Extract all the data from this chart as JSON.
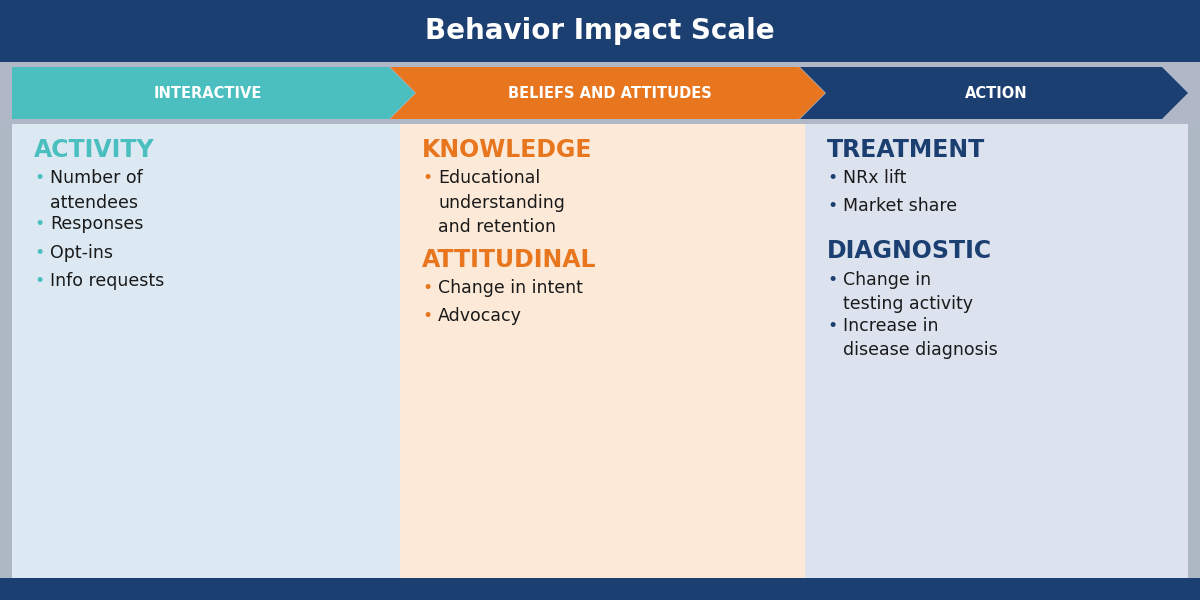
{
  "title": "Behavior Impact Scale",
  "title_color": "#ffffff",
  "title_bg_color": "#1c3f72",
  "header_bg_color": "#b0b8c8",
  "arrows": [
    {
      "label": "INTERACTIVE",
      "color": "#4bbfbf",
      "text_color": "#ffffff"
    },
    {
      "label": "BELIEFS AND ATTITUDES",
      "color": "#e8761e",
      "text_color": "#ffffff"
    },
    {
      "label": "ACTION",
      "color": "#1c3f72",
      "text_color": "#ffffff"
    }
  ],
  "columns": [
    {
      "bg_color": "#dce9f2",
      "heading": "ACTIVITY",
      "heading_color": "#4bbfbf",
      "bullet_color": "#4bbfbf",
      "items": [
        "Number of\nattendees",
        "Responses",
        "Opt-ins",
        "Info requests"
      ],
      "heading2": null,
      "heading2_color": null,
      "items2": []
    },
    {
      "bg_color": "#fce9d8",
      "heading": "KNOWLEDGE",
      "heading_color": "#e8761e",
      "bullet_color": "#e8761e",
      "items": [
        "Educational\nunderstanding\nand retention"
      ],
      "heading2": "ATTITUDINAL",
      "heading2_color": "#e8761e",
      "items2": [
        "Change in intent",
        "Advocacy"
      ]
    },
    {
      "bg_color": "#dce3ef",
      "heading": "TREATMENT",
      "heading_color": "#1c3f72",
      "bullet_color": "#1c3f72",
      "items": [
        "NRx lift",
        "Market share"
      ],
      "heading2": "DIAGNOSTIC",
      "heading2_color": "#1c3f72",
      "items2": [
        "Change in\ntesting activity",
        "Increase in\ndisease diagnosis"
      ]
    }
  ],
  "bottom_bar_color": "#1c3f72",
  "outer_bg_color": "#aeb7c4",
  "fig_width": 12.0,
  "fig_height": 6.0,
  "dpi": 100
}
